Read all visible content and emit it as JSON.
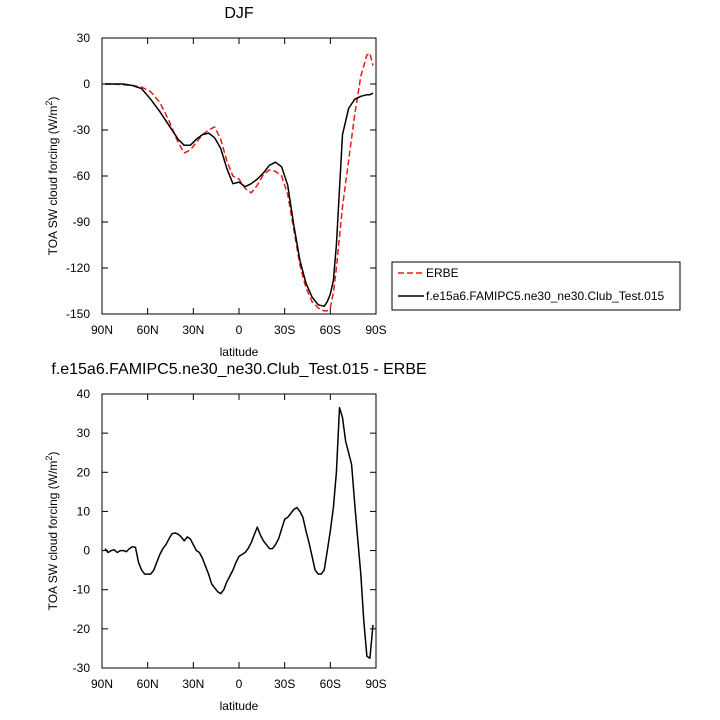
{
  "chart_data": [
    {
      "type": "line",
      "title": "DJF",
      "xlabel": "latitude",
      "ylabel_main": "TOA SW cloud forcing (W/m",
      "ylabel_sup": "2",
      "ylabel_close": ")",
      "xlim": [
        90,
        -90
      ],
      "ylim": [
        -150,
        30
      ],
      "xticks": [
        90,
        60,
        30,
        0,
        -30,
        -60,
        -90
      ],
      "xticklabels": [
        "90N",
        "60N",
        "30N",
        "0",
        "30S",
        "60S",
        "90S"
      ],
      "yticks": [
        30,
        0,
        -30,
        -60,
        -90,
        -120,
        -150
      ],
      "yticklabels": [
        "30",
        "0",
        "-30",
        "-60",
        "-90",
        "-120",
        "-150"
      ],
      "grid": false,
      "legend_position": "right",
      "series": [
        {
          "name": "ERBE",
          "color": "#e8191a",
          "dash": true,
          "x": [
            88,
            82,
            76,
            70,
            64,
            58,
            52,
            46,
            40,
            36,
            32,
            28,
            24,
            20,
            16,
            12,
            8,
            4,
            0,
            -4,
            -8,
            -12,
            -16,
            -20,
            -24,
            -28,
            -32,
            -36,
            -40,
            -44,
            -48,
            -52,
            -56,
            -58,
            -60,
            -62,
            -64,
            -68,
            -72,
            -76,
            -80,
            -84,
            -86,
            -88
          ],
          "y": [
            0,
            0,
            -0.5,
            -1,
            -2,
            -5,
            -12,
            -24,
            -38,
            -45,
            -43,
            -38,
            -33,
            -30,
            -28,
            -36,
            -50,
            -60,
            -62,
            -68,
            -71,
            -66,
            -59,
            -56,
            -57,
            -60,
            -72,
            -95,
            -118,
            -133,
            -142,
            -146,
            -148,
            -148,
            -146,
            -136,
            -120,
            -80,
            -50,
            -20,
            5,
            19,
            20,
            12
          ]
        },
        {
          "name": "f.e15a6.FAMIPC5.ne30_ne30.Club_Test.015",
          "color": "#000000",
          "dash": false,
          "x": [
            88,
            82,
            76,
            70,
            64,
            58,
            52,
            46,
            40,
            36,
            32,
            28,
            24,
            20,
            16,
            12,
            8,
            4,
            0,
            -4,
            -8,
            -12,
            -16,
            -20,
            -24,
            -28,
            -32,
            -36,
            -40,
            -44,
            -48,
            -52,
            -56,
            -58,
            -60,
            -62,
            -64,
            -68,
            -72,
            -76,
            -80,
            -84,
            -86,
            -88
          ],
          "y": [
            0,
            0,
            0,
            -1,
            -3,
            -10,
            -18,
            -27,
            -36,
            -40,
            -40,
            -36,
            -33,
            -32,
            -35,
            -42,
            -55,
            -65,
            -64,
            -67,
            -65,
            -62,
            -58,
            -53,
            -51,
            -54,
            -66,
            -92,
            -115,
            -130,
            -139,
            -144,
            -145,
            -142,
            -137,
            -128,
            -105,
            -33,
            -16,
            -10,
            -8,
            -7,
            -7,
            -6
          ]
        }
      ]
    },
    {
      "type": "line",
      "title": "f.e15a6.FAMIPC5.ne30_ne30.Club_Test.015 - ERBE",
      "xlabel": "latitude",
      "ylabel_main": "TOA SW cloud forcing (W/m",
      "ylabel_sup": "2",
      "ylabel_close": ")",
      "xlim": [
        90,
        -90
      ],
      "ylim": [
        -30,
        40
      ],
      "xticks": [
        90,
        60,
        30,
        0,
        -30,
        -60,
        -90
      ],
      "xticklabels": [
        "90N",
        "60N",
        "30N",
        "0",
        "30S",
        "60S",
        "90S"
      ],
      "yticks": [
        40,
        30,
        20,
        10,
        0,
        -10,
        -20,
        -30
      ],
      "yticklabels": [
        "40",
        "30",
        "20",
        "10",
        "0",
        "-10",
        "-20",
        "-30"
      ],
      "grid": false,
      "series": [
        {
          "color": "#000000",
          "dash": false,
          "x": [
            88,
            86,
            84,
            82,
            80,
            78,
            76,
            74,
            72,
            70,
            68,
            66,
            64,
            62,
            60,
            58,
            56,
            54,
            52,
            50,
            48,
            46,
            44,
            42,
            40,
            38,
            36,
            34,
            32,
            30,
            28,
            26,
            24,
            22,
            20,
            18,
            16,
            14,
            12,
            10,
            8,
            6,
            4,
            2,
            0,
            -2,
            -4,
            -6,
            -8,
            -10,
            -12,
            -14,
            -16,
            -18,
            -20,
            -22,
            -24,
            -26,
            -28,
            -30,
            -32,
            -34,
            -36,
            -38,
            -40,
            -42,
            -44,
            -46,
            -48,
            -50,
            -52,
            -54,
            -56,
            -58,
            -60,
            -62,
            -64,
            -66,
            -68,
            -70,
            -72,
            -74,
            -76,
            -78,
            -80,
            -82,
            -84,
            -86,
            -88
          ],
          "y": [
            0.5,
            -0.5,
            0,
            0.2,
            -0.5,
            0,
            0,
            -0.3,
            0.5,
            1,
            0.8,
            -3,
            -5,
            -6,
            -6,
            -6,
            -5,
            -3,
            -1,
            0.5,
            1.5,
            3,
            4.3,
            4.5,
            4.2,
            3.5,
            2.5,
            3.5,
            3,
            1.5,
            0,
            -0.5,
            -2,
            -4,
            -6,
            -8.5,
            -9.5,
            -10.5,
            -11,
            -10,
            -8,
            -6.5,
            -5,
            -3,
            -1.5,
            -1,
            -0.5,
            0.5,
            2,
            4,
            6,
            4,
            2.5,
            1.5,
            0.5,
            0.5,
            1.5,
            3,
            5.5,
            8,
            8.5,
            9.5,
            10.5,
            11,
            10,
            8.5,
            5,
            2,
            -1.5,
            -5,
            -6,
            -6,
            -5,
            0,
            5,
            11,
            20,
            36.5,
            34,
            28,
            25,
            22,
            12,
            3,
            -6,
            -18,
            -27,
            -27.5,
            -19
          ]
        }
      ]
    }
  ]
}
